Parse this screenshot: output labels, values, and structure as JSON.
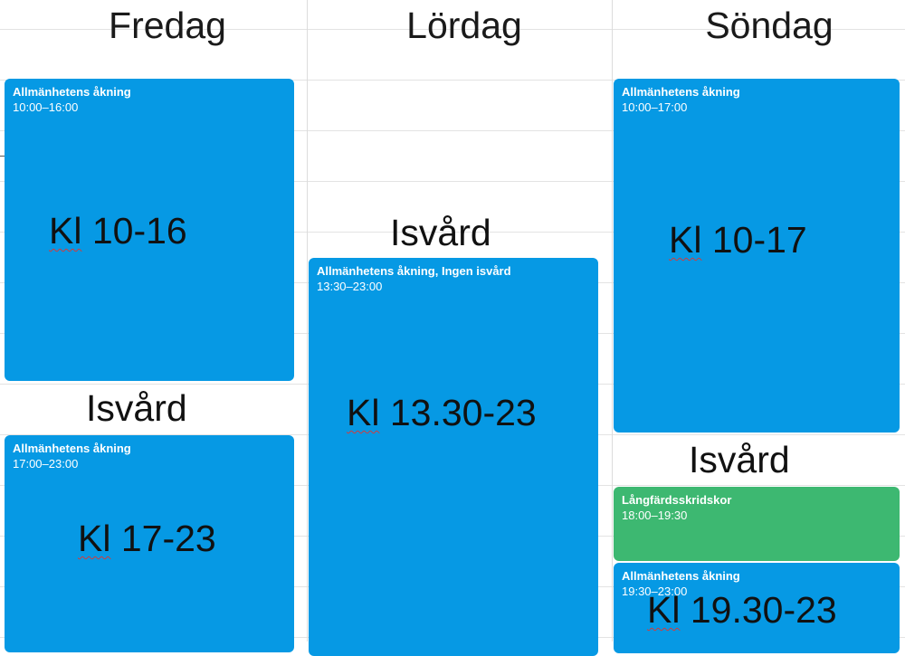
{
  "days": {
    "friday": "Fredag",
    "saturday": "Lördag",
    "sunday": "Söndag"
  },
  "events": {
    "fri_morning": {
      "title": "Allmänhetens åkning",
      "time": "10:00–16:00"
    },
    "fri_evening": {
      "title": "Allmänhetens åkning",
      "time": "17:00–23:00"
    },
    "sat": {
      "title": "Allmänhetens åkning, Ingen isvård",
      "time": "13:30–23:00"
    },
    "sun_morning": {
      "title": "Allmänhetens åkning",
      "time": "10:00–17:00"
    },
    "sun_long": {
      "title": "Långfärdsskridskor",
      "time": "18:00–19:30"
    },
    "sun_evening": {
      "title": "Allmänhetens åkning",
      "time": "19:30–23:00"
    }
  },
  "overlays": {
    "kl": "Kl",
    "fri_morning_time": "10-16",
    "fri_evening_time": "17-23",
    "sat_time": "13.30-23",
    "sun_morning_time": "10-17",
    "sun_evening_time": "19.30-23",
    "isvard": "Isvård"
  },
  "colors": {
    "event_blue": "#0699e4",
    "event_green": "#3db871"
  }
}
